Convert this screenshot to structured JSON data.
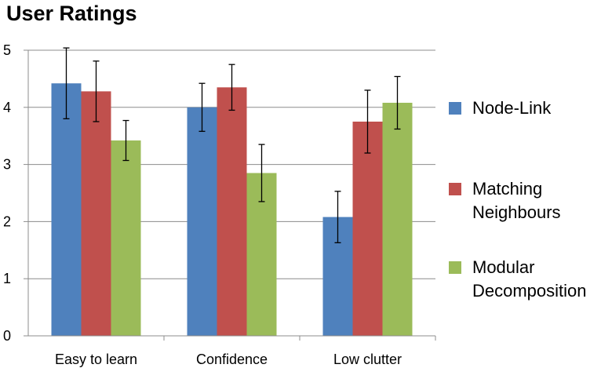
{
  "chart_data": {
    "type": "bar",
    "title": "User Ratings",
    "categories": [
      "Easy to learn",
      "Confidence",
      "Low clutter"
    ],
    "ylim": [
      0,
      5
    ],
    "yticks": [
      "0",
      "1",
      "2",
      "3",
      "4",
      "5"
    ],
    "grid": true,
    "legend_position": "right",
    "series": [
      {
        "name": "Node-Link",
        "color": "#4F81BD",
        "values": [
          4.42,
          4.0,
          2.08
        ],
        "errors": [
          0.62,
          0.42,
          0.45
        ]
      },
      {
        "name": "Matching Neighbours",
        "color": "#C0504D",
        "values": [
          4.28,
          4.35,
          3.75
        ],
        "errors": [
          0.53,
          0.4,
          0.55
        ]
      },
      {
        "name": "Modular Decomposition",
        "color": "#9BBB59",
        "values": [
          3.42,
          2.85,
          4.08
        ],
        "errors": [
          0.35,
          0.5,
          0.46
        ]
      }
    ]
  }
}
